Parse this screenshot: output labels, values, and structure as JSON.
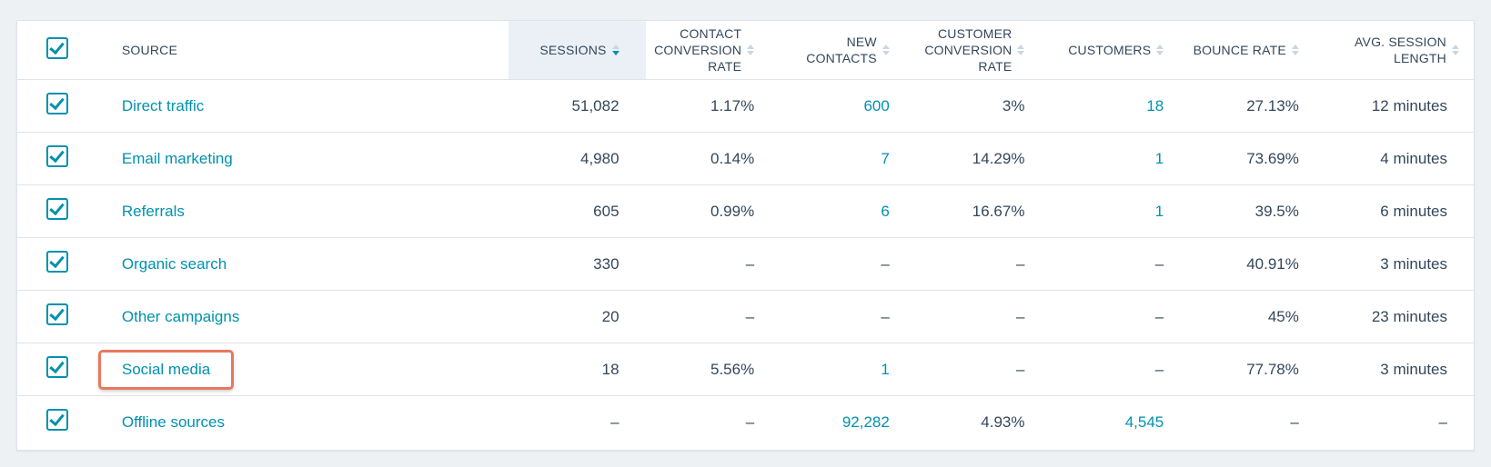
{
  "columns": {
    "source": "SOURCE",
    "sessions": "SESSIONS",
    "contact_conversion_rate": [
      "CONTACT",
      "CONVERSION",
      "RATE"
    ],
    "new_contacts": [
      "NEW",
      "CONTACTS"
    ],
    "customer_conversion_rate": [
      "CUSTOMER",
      "CONVERSION",
      "RATE"
    ],
    "customers": "CUSTOMERS",
    "bounce_rate": "BOUNCE RATE",
    "avg_session_length": [
      "AVG. SESSION",
      "LENGTH"
    ]
  },
  "sorted_column": "sessions",
  "rows": [
    {
      "source": "Direct traffic",
      "sessions": "51,082",
      "contact_conversion_rate": "1.17%",
      "new_contacts": "600",
      "customer_conversion_rate": "3%",
      "customers": "18",
      "bounce_rate": "27.13%",
      "avg_session_length": "12 minutes"
    },
    {
      "source": "Email marketing",
      "sessions": "4,980",
      "contact_conversion_rate": "0.14%",
      "new_contacts": "7",
      "customer_conversion_rate": "14.29%",
      "customers": "1",
      "bounce_rate": "73.69%",
      "avg_session_length": "4 minutes"
    },
    {
      "source": "Referrals",
      "sessions": "605",
      "contact_conversion_rate": "0.99%",
      "new_contacts": "6",
      "customer_conversion_rate": "16.67%",
      "customers": "1",
      "bounce_rate": "39.5%",
      "avg_session_length": "6 minutes"
    },
    {
      "source": "Organic search",
      "sessions": "330",
      "contact_conversion_rate": "–",
      "new_contacts": "–",
      "customer_conversion_rate": "–",
      "customers": "–",
      "bounce_rate": "40.91%",
      "avg_session_length": "3 minutes"
    },
    {
      "source": "Other campaigns",
      "sessions": "20",
      "contact_conversion_rate": "–",
      "new_contacts": "–",
      "customer_conversion_rate": "–",
      "customers": "–",
      "bounce_rate": "45%",
      "avg_session_length": "23 minutes"
    },
    {
      "source": "Social media",
      "sessions": "18",
      "contact_conversion_rate": "5.56%",
      "new_contacts": "1",
      "customer_conversion_rate": "–",
      "customers": "–",
      "bounce_rate": "77.78%",
      "avg_session_length": "3 minutes",
      "highlighted": true
    },
    {
      "source": "Offline sources",
      "sessions": "–",
      "contact_conversion_rate": "–",
      "new_contacts": "92,282",
      "customer_conversion_rate": "4.93%",
      "customers": "4,545",
      "bounce_rate": "–",
      "avg_session_length": "–"
    }
  ],
  "colors": {
    "link": "#0091ae",
    "text": "#33475b",
    "highlight_border": "#e8785c",
    "sorted_header_bg": "#eaf0f6"
  },
  "icons": {
    "checkbox": "checkbox-checked-icon",
    "sort": "sort-arrows-icon"
  }
}
